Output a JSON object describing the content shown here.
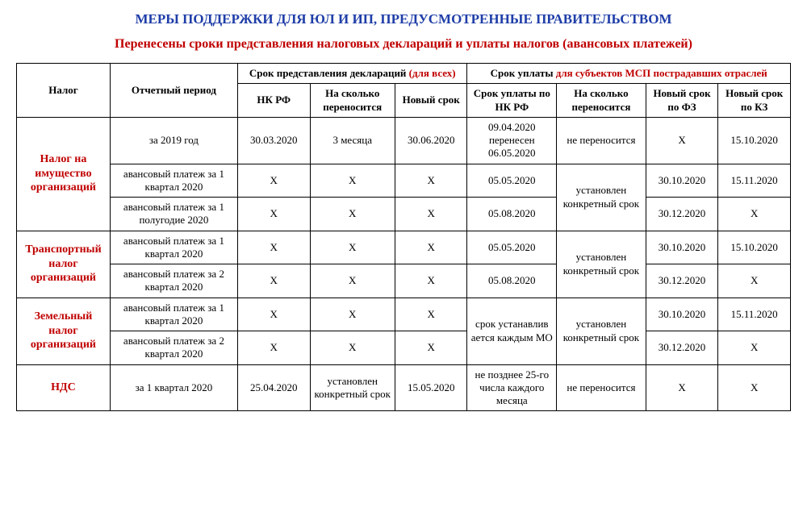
{
  "colors": {
    "title": "#1f3ea8",
    "accent": "#c00000",
    "text": "#000000",
    "bg": "#ffffff",
    "border": "#000000"
  },
  "typography": {
    "family": "Times New Roman",
    "title_fontsize": 17,
    "subtitle_fontsize": 16,
    "cell_fontsize": 13
  },
  "title1": "МЕРЫ ПОДДЕРЖКИ ДЛЯ ЮЛ И ИП, ПРЕДУСМОТРЕННЫЕ ПРАВИТЕЛЬСТВОМ",
  "title2": "Перенесены сроки представления налоговых деклараций и уплаты налогов (авансовых платежей)",
  "headers": {
    "tax": "Налог",
    "period": "Отчетный период",
    "decl_group_a": "Срок представления деклараций ",
    "decl_group_b": "(для всех)",
    "pay_group_a": "Срок уплаты ",
    "pay_group_b": "для субъектов МСП пострадавших отраслей",
    "nk": "НК РФ",
    "shift": "На сколько переносится",
    "newdate": "Новый срок",
    "pay_nk": "Срок уплаты по НК РФ",
    "pay_shift": "На сколько переносится",
    "pay_fz": "Новый срок по ФЗ",
    "pay_kz": "Новый срок по КЗ"
  },
  "groups": [
    {
      "tax": "Налог на имущество организаций",
      "rows": [
        {
          "period": "за 2019 год",
          "nk": "30.03.2020",
          "shift": "3 месяца",
          "newdate": "30.06.2020",
          "pay_nk": "09.04.2020 перенесен 06.05.2020",
          "pay_shift": "не переносится",
          "pay_fz": "Х",
          "pay_kz": "15.10.2020"
        },
        {
          "period": "авансовый платеж за 1 квартал 2020",
          "nk": "Х",
          "shift": "Х",
          "newdate": "Х",
          "pay_nk": "05.05.2020",
          "pay_shift": "установлен конкретный срок",
          "pay_fz": "30.10.2020",
          "pay_kz": "15.11.2020",
          "merge_shift_with_next": true
        },
        {
          "period": "авансовый платеж за 1 полугодие 2020",
          "nk": "Х",
          "shift": "Х",
          "newdate": "Х",
          "pay_nk": "05.08.2020",
          "pay_fz": "30.12.2020",
          "pay_kz": "Х"
        }
      ]
    },
    {
      "tax": "Транспортный налог организаций",
      "rows": [
        {
          "period": "авансовый платеж за 1 квартал 2020",
          "nk": "Х",
          "shift": "Х",
          "newdate": "Х",
          "pay_nk": "05.05.2020",
          "pay_shift": "установлен конкретный срок",
          "pay_fz": "30.10.2020",
          "pay_kz": "15.10.2020",
          "merge_shift_with_next": true
        },
        {
          "period": "авансовый платеж за 2 квартал 2020",
          "nk": "Х",
          "shift": "Х",
          "newdate": "Х",
          "pay_nk": "05.08.2020",
          "pay_fz": "30.12.2020",
          "pay_kz": "Х"
        }
      ]
    },
    {
      "tax": "Земельный налог организаций",
      "rows": [
        {
          "period": "авансовый платеж за 1 квартал 2020",
          "nk": "Х",
          "shift": "Х",
          "newdate": "Х",
          "pay_nk": "срок устанавлив ается каждым МО",
          "pay_shift": "установлен конкретный срок",
          "pay_fz": "30.10.2020",
          "pay_kz": "15.11.2020",
          "merge_shift_with_next": true,
          "merge_paynk_with_next": true
        },
        {
          "period": "авансовый платеж за 2 квартал 2020",
          "nk": "Х",
          "shift": "Х",
          "newdate": "Х",
          "pay_fz": "30.12.2020",
          "pay_kz": "Х"
        }
      ]
    },
    {
      "tax": "НДС",
      "rows": [
        {
          "period": "за 1 квартал 2020",
          "nk": "25.04.2020",
          "shift": "установлен конкретный срок",
          "newdate": "15.05.2020",
          "pay_nk": "не позднее 25-го числа каждого месяца",
          "pay_shift": "не переносится",
          "pay_fz": "Х",
          "pay_kz": "Х"
        }
      ]
    }
  ]
}
